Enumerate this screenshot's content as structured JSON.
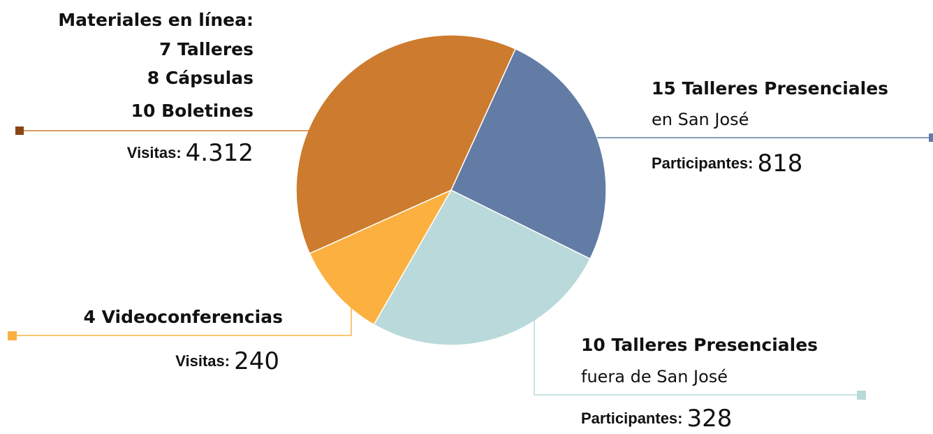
{
  "chart_data": {
    "type": "pie",
    "segments": [
      {
        "color": "#627ca6",
        "value": 25.5,
        "lines": [
          "15 Talleres Presenciales"
        ],
        "subtitle": "en San José",
        "metric_label": "Participantes:",
        "metric_value": "818"
      },
      {
        "color": "#b9d9da",
        "value": 26,
        "lines": [
          "10 Talleres Presenciales"
        ],
        "subtitle": "fuera de San José",
        "metric_label": "Participantes:",
        "metric_value": "328"
      },
      {
        "color": "#fbb040",
        "value": 10,
        "lines": [
          "4 Videoconferencias"
        ],
        "metric_label": "Visitas:",
        "metric_value": "240"
      },
      {
        "color": "#cd7b2e",
        "value": 38.5,
        "lines": [
          "Materiales en línea:",
          "7 Talleres",
          "8 Cápsulas",
          "10 Boletines"
        ],
        "metric_label": "Visitas:",
        "metric_value": "4.312"
      }
    ]
  }
}
